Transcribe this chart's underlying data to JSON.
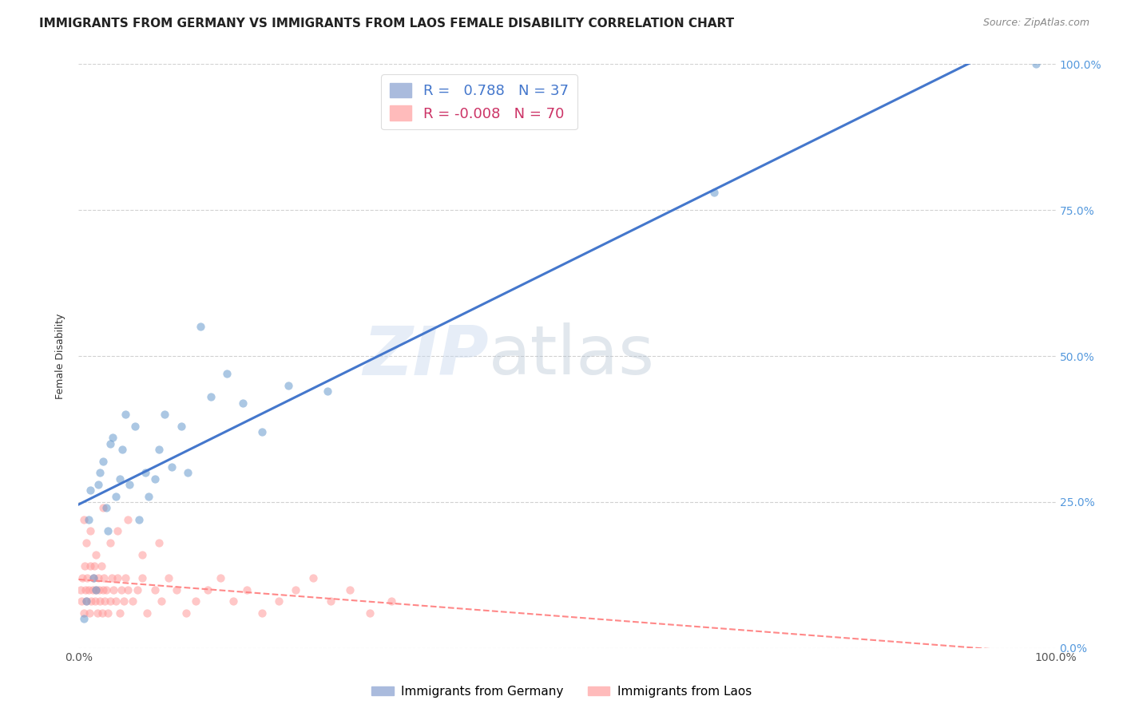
{
  "title": "IMMIGRANTS FROM GERMANY VS IMMIGRANTS FROM LAOS FEMALE DISABILITY CORRELATION CHART",
  "source": "Source: ZipAtlas.com",
  "ylabel": "Female Disability",
  "xlim": [
    0.0,
    1.0
  ],
  "ylim": [
    0.0,
    1.0
  ],
  "ytick_values": [
    0.0,
    0.25,
    0.5,
    0.75,
    1.0
  ],
  "xtick_values": [
    0.0,
    0.25,
    0.5,
    0.75,
    1.0
  ],
  "germany_color": "#6699CC",
  "laos_color": "#FF9999",
  "germany_line_color": "#4477CC",
  "laos_line_color": "#FF8888",
  "germany_R": 0.788,
  "germany_N": 37,
  "laos_R": -0.008,
  "laos_N": 70,
  "watermark_zip": "ZIP",
  "watermark_atlas": "atlas",
  "legend_label_germany": "Immigrants from Germany",
  "legend_label_laos": "Immigrants from Laos",
  "germany_x": [
    0.005,
    0.008,
    0.01,
    0.012,
    0.015,
    0.018,
    0.02,
    0.022,
    0.025,
    0.028,
    0.03,
    0.032,
    0.035,
    0.038,
    0.042,
    0.045,
    0.048,
    0.052,
    0.058,
    0.062,
    0.068,
    0.072,
    0.078,
    0.082,
    0.088,
    0.095,
    0.105,
    0.112,
    0.125,
    0.135,
    0.152,
    0.168,
    0.188,
    0.215,
    0.255,
    0.65,
    0.98
  ],
  "germany_y": [
    0.05,
    0.08,
    0.22,
    0.27,
    0.12,
    0.1,
    0.28,
    0.3,
    0.32,
    0.24,
    0.2,
    0.35,
    0.36,
    0.26,
    0.29,
    0.34,
    0.4,
    0.28,
    0.38,
    0.22,
    0.3,
    0.26,
    0.29,
    0.34,
    0.4,
    0.31,
    0.38,
    0.3,
    0.55,
    0.43,
    0.47,
    0.42,
    0.37,
    0.45,
    0.44,
    0.78,
    1.0
  ],
  "laos_x": [
    0.002,
    0.003,
    0.004,
    0.005,
    0.006,
    0.007,
    0.008,
    0.009,
    0.01,
    0.011,
    0.012,
    0.013,
    0.014,
    0.015,
    0.016,
    0.017,
    0.018,
    0.019,
    0.02,
    0.021,
    0.022,
    0.023,
    0.024,
    0.025,
    0.026,
    0.027,
    0.028,
    0.03,
    0.032,
    0.034,
    0.036,
    0.038,
    0.04,
    0.042,
    0.044,
    0.046,
    0.048,
    0.05,
    0.055,
    0.06,
    0.065,
    0.07,
    0.078,
    0.085,
    0.092,
    0.1,
    0.11,
    0.12,
    0.132,
    0.145,
    0.158,
    0.172,
    0.188,
    0.205,
    0.222,
    0.24,
    0.258,
    0.278,
    0.298,
    0.32,
    0.005,
    0.008,
    0.012,
    0.018,
    0.025,
    0.032,
    0.04,
    0.05,
    0.065,
    0.082
  ],
  "laos_y": [
    0.1,
    0.08,
    0.12,
    0.06,
    0.14,
    0.1,
    0.08,
    0.12,
    0.1,
    0.06,
    0.14,
    0.08,
    0.1,
    0.12,
    0.14,
    0.08,
    0.1,
    0.06,
    0.12,
    0.1,
    0.08,
    0.14,
    0.06,
    0.1,
    0.12,
    0.08,
    0.1,
    0.06,
    0.08,
    0.12,
    0.1,
    0.08,
    0.12,
    0.06,
    0.1,
    0.08,
    0.12,
    0.1,
    0.08,
    0.1,
    0.12,
    0.06,
    0.1,
    0.08,
    0.12,
    0.1,
    0.06,
    0.08,
    0.1,
    0.12,
    0.08,
    0.1,
    0.06,
    0.08,
    0.1,
    0.12,
    0.08,
    0.1,
    0.06,
    0.08,
    0.22,
    0.18,
    0.2,
    0.16,
    0.24,
    0.18,
    0.2,
    0.22,
    0.16,
    0.18
  ],
  "title_fontsize": 11,
  "axis_label_fontsize": 9,
  "tick_fontsize": 10,
  "scatter_alpha": 0.55,
  "scatter_size": 55
}
